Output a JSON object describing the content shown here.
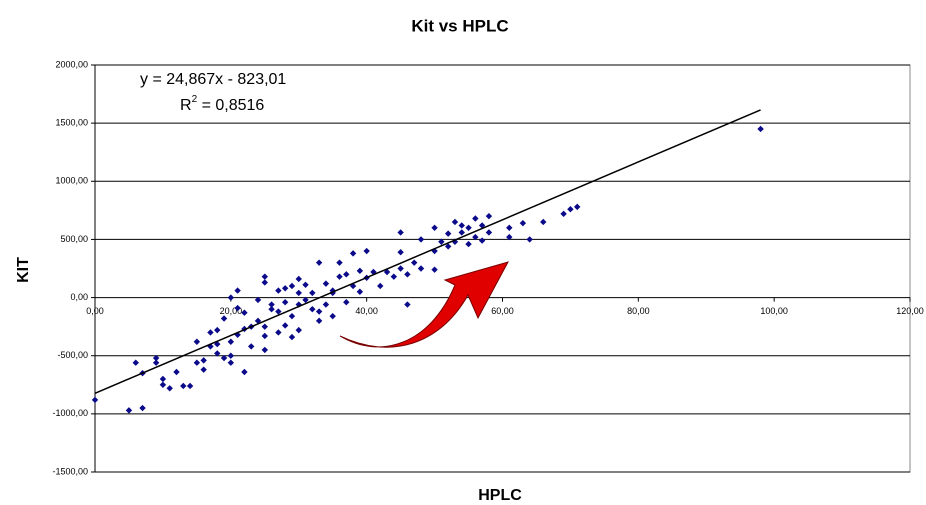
{
  "chart_data": {
    "type": "scatter",
    "title": "Kit vs HPLC",
    "x_label": "HPLC",
    "y_label": "KIT",
    "xlim": [
      0,
      120
    ],
    "ylim": [
      -1500,
      2000
    ],
    "xticks": [
      {
        "value": 0,
        "label": "0,00"
      },
      {
        "value": 20,
        "label": "20,00"
      },
      {
        "value": 40,
        "label": "40,00"
      },
      {
        "value": 60,
        "label": "60,00"
      },
      {
        "value": 80,
        "label": "80,00"
      },
      {
        "value": 100,
        "label": "100,00"
      },
      {
        "value": 120,
        "label": "120,00"
      }
    ],
    "yticks": [
      {
        "value": -1500,
        "label": "-1500,00"
      },
      {
        "value": -1000,
        "label": "-1000,00"
      },
      {
        "value": -500,
        "label": "-500,00"
      },
      {
        "value": 0,
        "label": "0,00"
      },
      {
        "value": 500,
        "label": "500,00"
      },
      {
        "value": 1000,
        "label": "1000,00"
      },
      {
        "value": 1500,
        "label": "1500,00"
      },
      {
        "value": 2000,
        "label": "2000,00"
      }
    ],
    "grid": true,
    "color": "#0a0a8a",
    "trendline": {
      "slope": 24.867,
      "intercept": -823.01,
      "label": "y = 24,867x - 823,01",
      "r2_text": [
        "R",
        "2",
        " = 0,8516"
      ],
      "r2": 0.8516,
      "color": "#000000"
    },
    "x": [
      0,
      5,
      6,
      7,
      7,
      9,
      9,
      10,
      10,
      11,
      12,
      13,
      14,
      15,
      15,
      16,
      16,
      17,
      17,
      18,
      18,
      18,
      19,
      19,
      20,
      20,
      20,
      20,
      21,
      21,
      21,
      22,
      22,
      22,
      23,
      23,
      24,
      24,
      25,
      25,
      25,
      25,
      25,
      26,
      26,
      27,
      27,
      27,
      28,
      28,
      28,
      29,
      29,
      29,
      30,
      30,
      30,
      30,
      31,
      31,
      32,
      32,
      33,
      33,
      33,
      34,
      34,
      35,
      35,
      35,
      36,
      36,
      37,
      37,
      38,
      38,
      39,
      39,
      40,
      40,
      41,
      42,
      43,
      44,
      45,
      45,
      45,
      46,
      46,
      47,
      48,
      48,
      50,
      50,
      50,
      51,
      52,
      52,
      53,
      53,
      54,
      54,
      55,
      55,
      56,
      56,
      57,
      57,
      58,
      58,
      61,
      61,
      63,
      64,
      66,
      69,
      70,
      71,
      98
    ],
    "values": [
      -880,
      -970,
      -560,
      -950,
      -650,
      -520,
      -560,
      -700,
      -750,
      -780,
      -640,
      -760,
      -760,
      -380,
      -560,
      -540,
      -620,
      -420,
      -300,
      -400,
      -480,
      -280,
      -520,
      -180,
      -560,
      -500,
      -380,
      0,
      -320,
      -90,
      60,
      -270,
      -640,
      -130,
      -420,
      -250,
      -200,
      -20,
      -450,
      -330,
      130,
      180,
      -250,
      -60,
      -100,
      -120,
      -300,
      60,
      -240,
      -40,
      80,
      -340,
      -160,
      100,
      -280,
      -60,
      40,
      160,
      110,
      -20,
      40,
      -100,
      -120,
      -200,
      300,
      -60,
      120,
      60,
      40,
      -160,
      300,
      180,
      -40,
      200,
      380,
      100,
      230,
      50,
      400,
      170,
      220,
      100,
      220,
      180,
      560,
      390,
      250,
      200,
      -60,
      300,
      500,
      250,
      240,
      600,
      400,
      480,
      440,
      550,
      480,
      650,
      560,
      620,
      460,
      600,
      520,
      680,
      490,
      620,
      560,
      700,
      600,
      520,
      640,
      500,
      650,
      720,
      760,
      780,
      1450
    ]
  }
}
